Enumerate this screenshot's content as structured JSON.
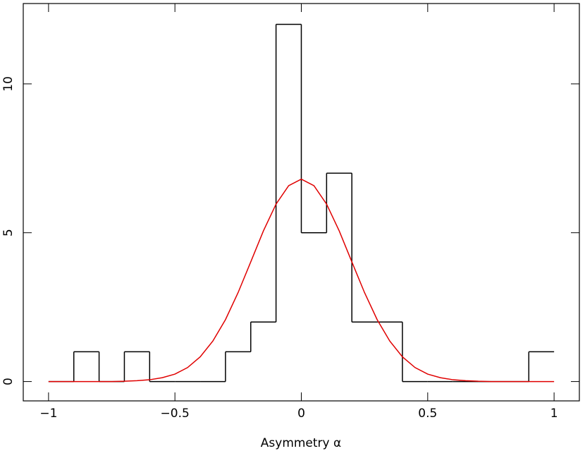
{
  "chart_data": {
    "type": "histogram",
    "x_label": "Asymmetry α",
    "bins": [
      -1,
      -0.9,
      -0.8,
      -0.7,
      -0.6,
      -0.5,
      -0.4,
      -0.3,
      -0.2,
      -0.1,
      0,
      0.1,
      0.2,
      0.3,
      0.4,
      0.5,
      0.6,
      0.7,
      0.8,
      0.9,
      1
    ],
    "counts": [
      0,
      1,
      0,
      1,
      0,
      0,
      0,
      1,
      2,
      12,
      5,
      7,
      2,
      2,
      0,
      0,
      0,
      0,
      0,
      1
    ],
    "color": "#000000",
    "curve": {
      "type": "line",
      "color": "#e00000",
      "x": [
        -1,
        -0.95,
        -0.9,
        -0.85,
        -0.8,
        -0.75,
        -0.7,
        -0.65,
        -0.6,
        -0.55,
        -0.5,
        -0.45,
        -0.4,
        -0.35,
        -0.3,
        -0.25,
        -0.2,
        -0.15,
        -0.1,
        -0.05,
        0,
        0.05,
        0.1,
        0.15,
        0.2,
        0.25,
        0.3,
        0.35,
        0.4,
        0.45,
        0.5,
        0.55,
        0.6,
        0.65,
        0.7,
        0.75,
        0.8,
        0.85,
        0.9,
        0.95,
        1
      ],
      "values": [
        0,
        0,
        0,
        0,
        0,
        0,
        0.01,
        0.03,
        0.06,
        0.13,
        0.25,
        0.47,
        0.83,
        1.36,
        2.08,
        2.99,
        4.02,
        5.06,
        5.96,
        6.58,
        6.8,
        6.58,
        5.96,
        5.06,
        4.02,
        2.99,
        2.08,
        1.36,
        0.83,
        0.47,
        0.25,
        0.13,
        0.06,
        0.03,
        0.01,
        0,
        0,
        0,
        0,
        0,
        0
      ]
    },
    "xlim": [
      -1.1,
      1.1
    ],
    "ylim": [
      -0.65,
      12.7
    ],
    "xticks": [
      {
        "value": -1,
        "label": "−1"
      },
      {
        "value": -0.5,
        "label": "−0.5"
      },
      0,
      0.5,
      1
    ],
    "yticks": [
      0,
      5,
      10
    ]
  }
}
